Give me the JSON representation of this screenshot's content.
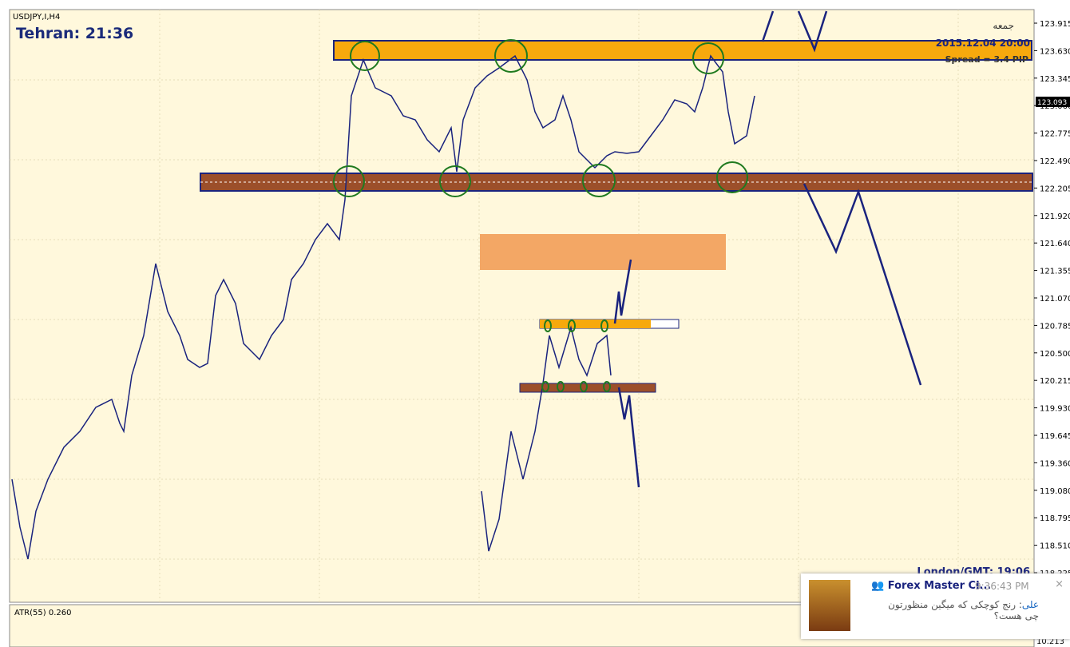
{
  "header": {
    "symbol": "USDJPY,I,H4",
    "clock": "Tehran: 21:36"
  },
  "info": {
    "day": "جمعه",
    "datetime": "2015.12.04 20:00",
    "spread": "Spread = 3.4 PIP",
    "london": "London/GMT: 19:06"
  },
  "price_axis": {
    "labels": [
      "123.915",
      "123.630",
      "123.345",
      "123.060",
      "122.775",
      "122.490",
      "122.205",
      "121.920",
      "121.640",
      "121.355",
      "121.070",
      "120.785",
      "120.500",
      "120.215",
      "119.930",
      "119.645",
      "119.360",
      "119.080",
      "118.795",
      "118.510",
      "118.225"
    ],
    "current": "123.093"
  },
  "indicator": {
    "label": "ATR(55) 0.260",
    "axis_max": "10.213",
    "axis_zero": "0"
  },
  "notification": {
    "title": "Forex Master Cl...",
    "time": "9:36:43 PM",
    "sender": "علی",
    "message": "رنج کوچکی که میگین منظورتون چی هست؟"
  }
}
